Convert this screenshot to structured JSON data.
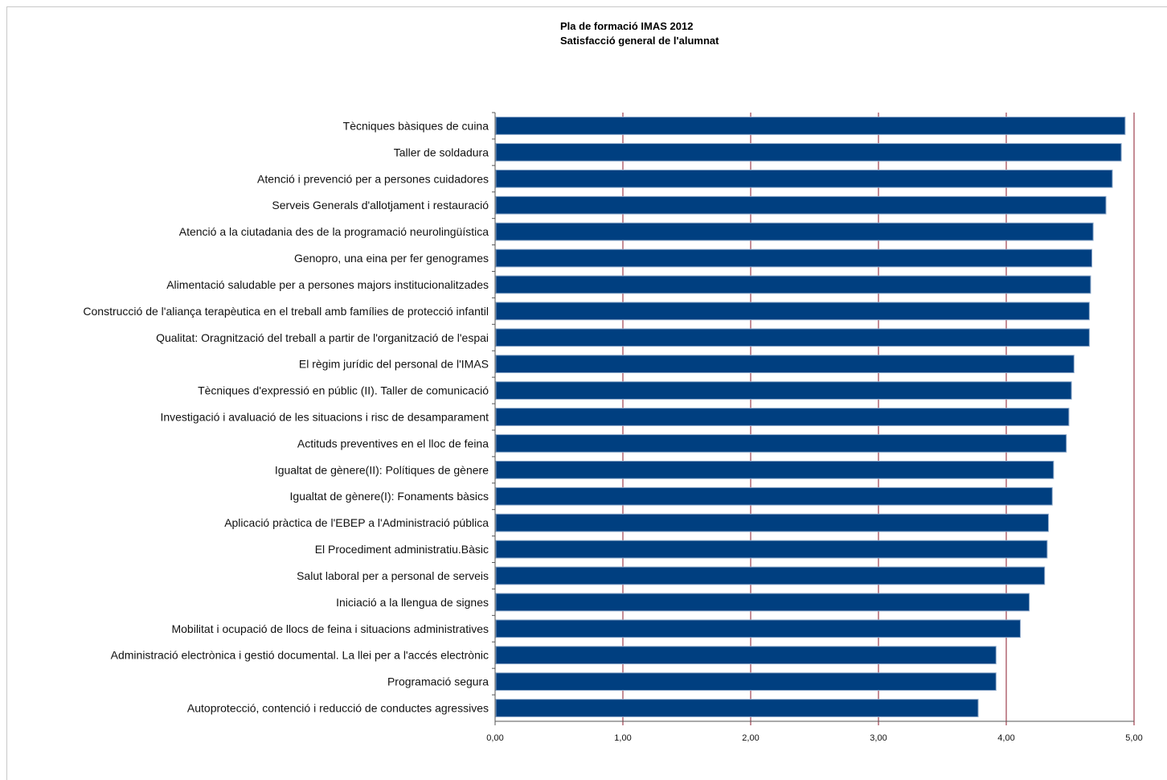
{
  "chart_data": {
    "type": "bar",
    "orientation": "horizontal",
    "title": "Pla de formació IMAS 2012",
    "subtitle": "Satisfacció general de l'alumnat",
    "xlim": [
      0,
      5
    ],
    "x_ticks": [
      "0,00",
      "1,00",
      "2,00",
      "3,00",
      "4,00",
      "5,00"
    ],
    "grid": "vertical lines, dark red",
    "bar_color": "#003f80",
    "grid_color": "#8b1a2b",
    "categories": [
      "Tècniques bàsiques de cuina",
      "Taller de soldadura",
      "Atenció i prevenció per a persones cuidadores",
      "Serveis Generals d'allotjament i restauració",
      "Atenció a la ciutadania des de la programació neurolingüística",
      "Genopro, una eina per fer genogrames",
      "Alimentació saludable per a persones majors institucionalitzades",
      "Construcció de l'aliança terapèutica en el treball amb famílies de protecció infantil",
      "Qualitat: Oragnització del treball a partir de l'organització de l'espai",
      "El règim jurídic del personal de l'IMAS",
      "Tècniques d'expressió en públic (II). Taller de comunicació",
      "Investigació i avaluació de les situacions i risc de desamparament",
      "Actituds preventives en el lloc de feina",
      "Igualtat de gènere(II): Polítiques de gènere",
      "Igualtat de gènere(I): Fonaments bàsics",
      "Aplicació pràctica de l'EBEP a l'Administració pública",
      "El Procediment administratiu.Bàsic",
      "Salut laboral per a personal de serveis",
      "Iniciació a la llengua de signes",
      "Mobilitat i ocupació de llocs de feina i situacions administratives",
      "Administració electrònica i gestió documental. La llei per a l'accés electrònic",
      "Programació segura",
      "Autoprotecció, contenció i reducció de conductes agressives"
    ],
    "values": [
      4.93,
      4.9,
      4.83,
      4.78,
      4.68,
      4.67,
      4.66,
      4.65,
      4.65,
      4.53,
      4.51,
      4.49,
      4.47,
      4.37,
      4.36,
      4.33,
      4.32,
      4.3,
      4.18,
      4.11,
      3.92,
      3.92,
      3.78
    ]
  }
}
